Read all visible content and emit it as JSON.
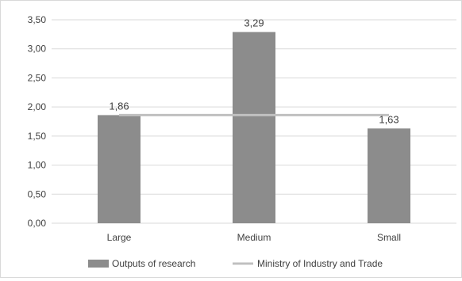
{
  "chart_data": {
    "type": "bar",
    "categories": [
      "Large",
      "Medium",
      "Small"
    ],
    "series": [
      {
        "name": "Outputs of research",
        "kind": "bar",
        "values": [
          1.86,
          3.29,
          1.63
        ],
        "value_labels": [
          "1,86",
          "3,29",
          "1,63"
        ],
        "color": "#8c8c8c"
      },
      {
        "name": "Ministry of Industry and Trade",
        "kind": "line",
        "values": [
          1.86,
          1.86,
          1.86
        ],
        "color": "#c0c0c0"
      }
    ],
    "ylim": [
      0,
      3.5
    ],
    "yticks": [
      0,
      0.5,
      1,
      1.5,
      2,
      2.5,
      3,
      3.5
    ],
    "ytick_labels": [
      "0,00",
      "0,50",
      "1,00",
      "1,50",
      "2,00",
      "2,50",
      "3,00",
      "3,50"
    ],
    "grid": true,
    "gridline_color": "#d9d9d9",
    "legend_position": "bottom"
  }
}
